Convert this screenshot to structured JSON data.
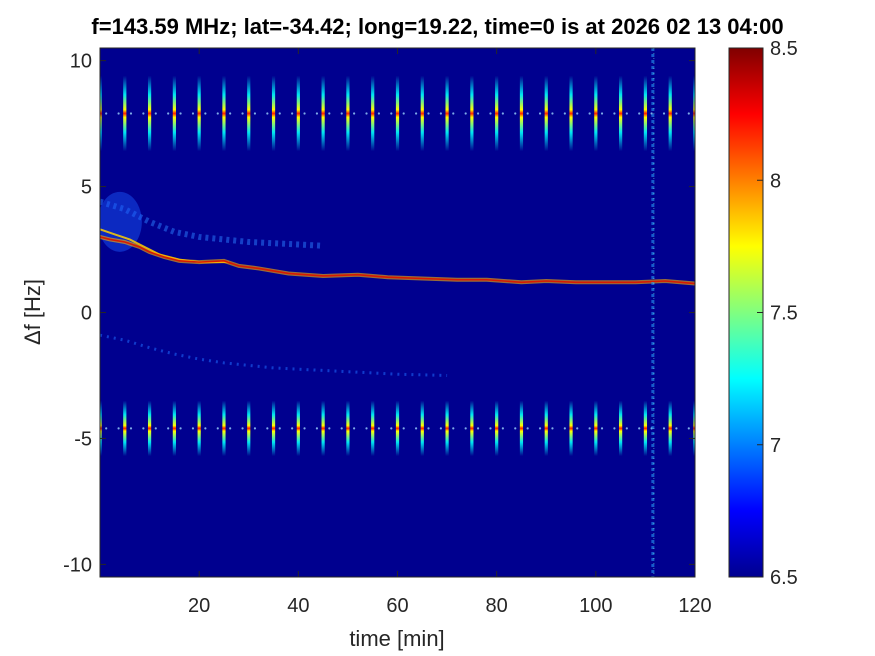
{
  "chart_data": {
    "type": "heatmap",
    "title": "f=143.59 MHz;  lat=-34.42; long=19.22, time=0 is at 2026 02 13 04:00",
    "xlabel": "time [min]",
    "ylabel": "Δf [Hz]",
    "xlim": [
      0,
      120
    ],
    "ylim": [
      -10.5,
      10.5
    ],
    "xticks": [
      20,
      40,
      60,
      80,
      100,
      120
    ],
    "yticks": [
      -10,
      -5,
      0,
      5,
      10
    ],
    "colorbar": {
      "min": 6.5,
      "max": 8.5,
      "ticks": [
        6.5,
        7,
        7.5,
        8,
        8.5
      ],
      "colormap": "jet"
    },
    "background_color": "#00008f",
    "features": {
      "upper_pulse_band": {
        "center": 7.9,
        "half_height": 1.5,
        "times": [
          0,
          5,
          10,
          15,
          20,
          25,
          30,
          35,
          40,
          45,
          50,
          55,
          60,
          65,
          70,
          75,
          80,
          85,
          90,
          95,
          100,
          105,
          110,
          115,
          120
        ]
      },
      "lower_pulse_band": {
        "center": -4.6,
        "half_height": 1.1,
        "times": [
          0,
          5,
          10,
          15,
          20,
          25,
          30,
          35,
          40,
          45,
          50,
          55,
          60,
          65,
          70,
          75,
          80,
          85,
          90,
          95,
          100,
          105,
          110,
          115,
          120
        ]
      },
      "drift_trace": {
        "x": [
          0,
          2,
          5,
          8,
          10,
          13,
          16,
          20,
          25,
          28,
          32,
          38,
          45,
          52,
          58,
          65,
          72,
          78,
          85,
          90,
          96,
          102,
          108,
          114,
          120
        ],
        "y": [
          3.0,
          2.9,
          2.8,
          2.6,
          2.4,
          2.2,
          2.05,
          2.0,
          2.05,
          1.85,
          1.75,
          1.55,
          1.45,
          1.5,
          1.4,
          1.35,
          1.3,
          1.3,
          1.2,
          1.25,
          1.2,
          1.2,
          1.2,
          1.25,
          1.15
        ]
      },
      "secondary_trace": {
        "x": [
          0,
          3,
          6,
          9,
          12,
          16,
          20,
          26
        ],
        "y": [
          3.3,
          3.1,
          2.9,
          2.6,
          2.3,
          2.1,
          2.0,
          2.0
        ]
      },
      "diffuse_upper_arc": {
        "x": [
          0,
          5,
          10,
          15,
          20,
          25,
          30,
          35,
          40,
          45
        ],
        "y": [
          4.4,
          4.1,
          3.6,
          3.2,
          3.0,
          2.9,
          2.8,
          2.75,
          2.7,
          2.65
        ]
      },
      "faint_lower_arc": {
        "x": [
          0,
          5,
          10,
          15,
          20,
          25,
          30,
          35,
          40,
          45,
          50,
          60,
          70
        ],
        "y": [
          -0.9,
          -1.1,
          -1.4,
          -1.65,
          -1.85,
          -2.0,
          -2.1,
          -2.2,
          -2.25,
          -2.3,
          -2.35,
          -2.45,
          -2.5
        ]
      },
      "interference_line": {
        "x": 111.5
      }
    }
  }
}
